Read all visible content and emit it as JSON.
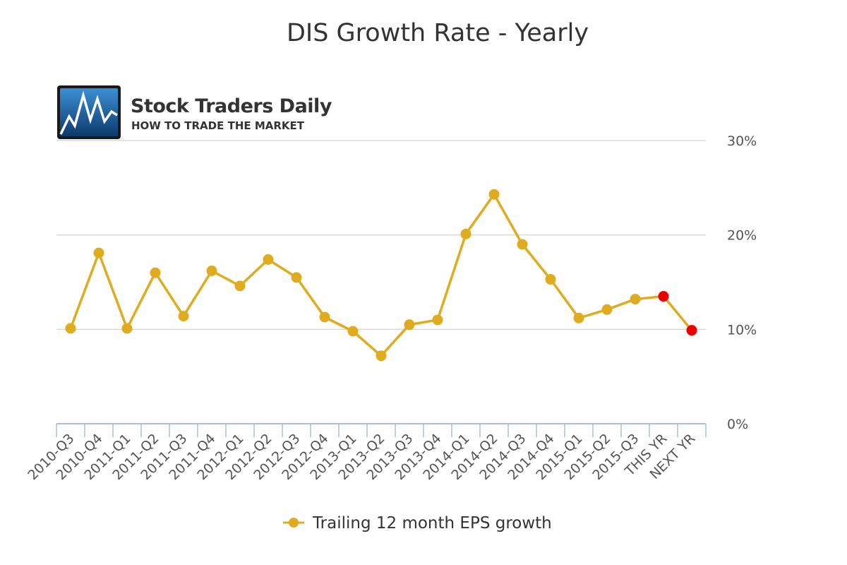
{
  "logo": {
    "name": "Stock Traders Daily",
    "tagline": "HOW TO TRADE THE MARKET"
  },
  "chart_data": {
    "type": "line",
    "title": "DIS Growth Rate - Yearly",
    "xlabel": "",
    "ylabel": "",
    "categories": [
      "2010-Q3",
      "2010-Q4",
      "2011-Q1",
      "2011-Q2",
      "2011-Q3",
      "2011-Q4",
      "2012-Q1",
      "2012-Q2",
      "2012-Q3",
      "2012-Q4",
      "2013-Q1",
      "2013-Q2",
      "2013-Q3",
      "2013-Q4",
      "2014-Q1",
      "2014-Q2",
      "2014-Q3",
      "2014-Q4",
      "2015-Q1",
      "2015-Q2",
      "2015-Q3",
      "THIS YR",
      "NEXT YR"
    ],
    "ylim": [
      0,
      30
    ],
    "yticks": [
      "0%",
      "10%",
      "20%",
      "30%"
    ],
    "ytick_values": [
      0,
      10,
      20,
      30
    ],
    "grid": true,
    "legend_position": "bottom-center",
    "series": [
      {
        "name": "Trailing 12 month EPS growth",
        "color": "#e0ac1f",
        "highlight_color": "#ee0000",
        "highlight_categories": [
          "THIS YR",
          "NEXT YR"
        ],
        "values": [
          10.1,
          18.1,
          10.1,
          16.0,
          11.4,
          16.2,
          14.6,
          17.4,
          15.5,
          11.3,
          9.8,
          7.2,
          10.5,
          11.0,
          20.1,
          24.3,
          19.0,
          15.3,
          11.2,
          12.1,
          13.2,
          13.5,
          9.9
        ]
      }
    ]
  }
}
